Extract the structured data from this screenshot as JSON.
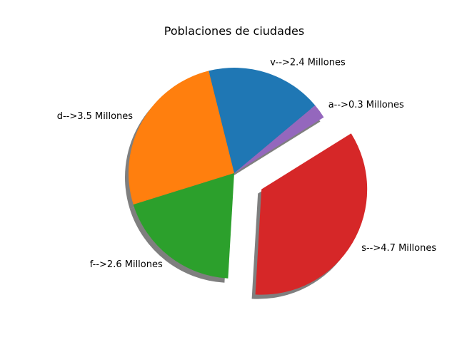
{
  "chart_data": {
    "type": "pie",
    "title": "Poblaciones de ciudades",
    "slices": [
      {
        "label": "v-->2.4 Millones",
        "value": 2.4,
        "color": "#1f77b4",
        "explode": 0
      },
      {
        "label": "d-->3.5 Millones",
        "value": 3.5,
        "color": "#ff7f0e",
        "explode": 0
      },
      {
        "label": "f-->2.6 Millones",
        "value": 2.6,
        "color": "#2ca02c",
        "explode": 0
      },
      {
        "label": "s-->4.7 Millones",
        "value": 4.7,
        "color": "#d62728",
        "explode": 0.3
      },
      {
        "label": "a-->0.3 Millones",
        "value": 0.3,
        "color": "#9467bd",
        "explode": 0
      }
    ],
    "start_angle_deg": 40,
    "direction": "counterclockwise",
    "shadow": true,
    "legend": false
  }
}
